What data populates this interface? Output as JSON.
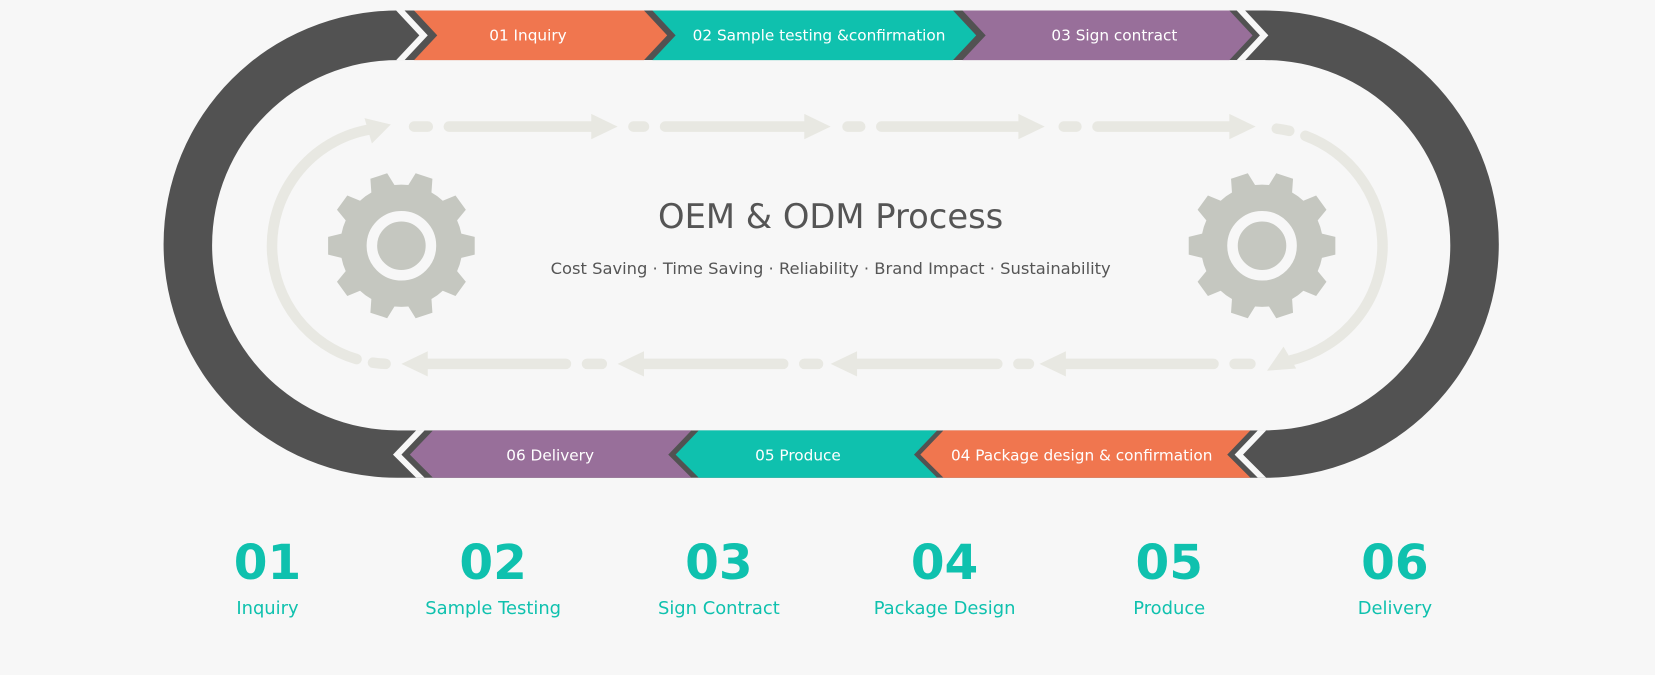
{
  "colors": {
    "orange": "#f0764f",
    "teal": "#0fc1ae",
    "purple": "#986f9a",
    "dark": "#525252",
    "gear": "#c5c7c0",
    "track": "#e8e8e2",
    "background": "#f7f7f7"
  },
  "diagram": {
    "title": "OEM & ODM Process",
    "subtitle": "Cost Saving · Time Saving · Reliability · Brand Impact · Sustainability",
    "top_steps": [
      {
        "label": "01 Inquiry",
        "color": "orange"
      },
      {
        "label": "02 Sample testing &confirmation",
        "color": "teal"
      },
      {
        "label": "03 Sign contract",
        "color": "purple"
      }
    ],
    "bottom_steps": [
      {
        "label": "06 Delivery",
        "color": "purple"
      },
      {
        "label": "05 Produce",
        "color": "teal"
      },
      {
        "label": "04 Package design & confirmation",
        "color": "orange"
      }
    ],
    "icons": [
      "gear-icon",
      "gear-icon"
    ]
  },
  "summary": [
    {
      "number": "01",
      "label": "Inquiry"
    },
    {
      "number": "02",
      "label": "Sample Testing"
    },
    {
      "number": "03",
      "label": "Sign Contract"
    },
    {
      "number": "04",
      "label": "Package Design"
    },
    {
      "number": "05",
      "label": "Produce"
    },
    {
      "number": "06",
      "label": "Delivery"
    }
  ]
}
